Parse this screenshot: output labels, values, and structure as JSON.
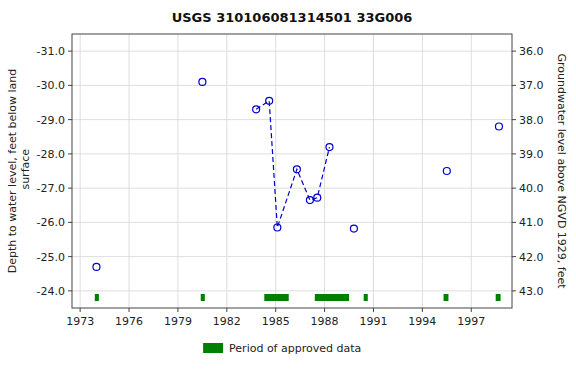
{
  "chart_data": {
    "type": "scatter",
    "title": "USGS 310106081314501 33G006",
    "ylabel": "Depth to water level, feet below land\n surface",
    "y2label": "Groundwater level above NGVD 1929, feet",
    "xlim": [
      1972.5,
      1999.5
    ],
    "xticks": [
      1973,
      1976,
      1979,
      1982,
      1985,
      1988,
      1991,
      1994,
      1997
    ],
    "ylim": [
      -23.5,
      -31.5
    ],
    "yticks": [
      {
        "value": -31.0,
        "label": "-31.0"
      },
      {
        "value": -30.0,
        "label": "-30.0"
      },
      {
        "value": -29.0,
        "label": "-29.0"
      },
      {
        "value": -28.0,
        "label": "-28.0"
      },
      {
        "value": -27.0,
        "label": "-27.0"
      },
      {
        "value": -26.0,
        "label": "-26.0"
      },
      {
        "value": -25.0,
        "label": "-25.0"
      },
      {
        "value": -24.0,
        "label": "-24.0"
      }
    ],
    "y2lim": [
      43.5,
      35.5
    ],
    "y2ticks": [
      {
        "value": 43.0,
        "label": "43.0"
      },
      {
        "value": 42.0,
        "label": "42.0"
      },
      {
        "value": 41.0,
        "label": "41.0"
      },
      {
        "value": 40.0,
        "label": "40.0"
      },
      {
        "value": 39.0,
        "label": "39.0"
      },
      {
        "value": 38.0,
        "label": "38.0"
      },
      {
        "value": 37.0,
        "label": "37.0"
      },
      {
        "value": 36.0,
        "label": "36.0"
      }
    ],
    "grid": true,
    "legend": "bottom",
    "series": [
      {
        "type": "scatter",
        "marker": "open-circle",
        "color": "#0000cc",
        "x": [
          1974.0,
          1980.5,
          1983.8,
          1984.6,
          1985.1,
          1986.3,
          1987.1,
          1987.55,
          1988.3,
          1989.8,
          1995.5,
          1998.7
        ],
        "values": [
          -24.7,
          -30.1,
          -29.3,
          -29.55,
          -25.85,
          -27.55,
          -26.65,
          -26.72,
          -28.2,
          -25.82,
          -27.5,
          -28.8
        ]
      },
      {
        "type": "line",
        "line_style": "dashed",
        "color": "#0000cc",
        "x": [
          1983.8,
          1984.6,
          1985.1,
          1986.3,
          1987.1,
          1987.55,
          1988.3
        ],
        "values": [
          -29.3,
          -29.55,
          -25.85,
          -27.55,
          -26.65,
          -26.72,
          -28.2
        ]
      },
      {
        "type": "span",
        "name": "Period of approved data",
        "color": "#008000",
        "start": [
          1973.9,
          1980.4,
          1984.3,
          1987.4,
          1990.4,
          1995.3,
          1998.5
        ],
        "end": [
          1974.15,
          1980.65,
          1985.8,
          1989.5,
          1990.65,
          1995.6,
          1998.8
        ]
      }
    ]
  }
}
